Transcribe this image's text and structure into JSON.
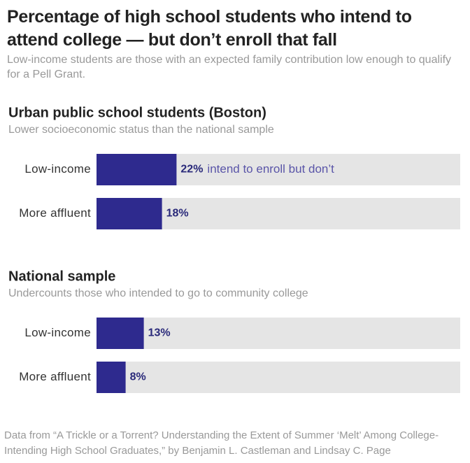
{
  "title": "Percentage of high school students who intend to attend college — but don’t enroll that fall",
  "subtitle": "Low-income students are those with an expected family contribution low enough to qualify for a Pell Grant.",
  "source": "Data from “A Trickle or a Torrent? Understanding the Extent of Summer ‘Melt’ Among College-Intending High School Graduates,” by Benjamin L. Castleman and Lindsay C. Page",
  "chart_data": [
    {
      "type": "bar",
      "orientation": "horizontal",
      "title": "Urban public school students (Boston)",
      "subtitle": "Lower socioeconomic status than the national sample",
      "categories": [
        "Low-income",
        "More affluent"
      ],
      "values": [
        22,
        18
      ],
      "value_labels": [
        "22%",
        "18%"
      ],
      "annotation": "intend to enroll but don’t",
      "xlim": [
        0,
        100
      ],
      "color": "#2e2a8e",
      "track_color": "#e5e5e5"
    },
    {
      "type": "bar",
      "orientation": "horizontal",
      "title": "National sample",
      "subtitle": "Undercounts those who intended to go to community college",
      "categories": [
        "Low-income",
        "More affluent"
      ],
      "values": [
        13,
        8
      ],
      "value_labels": [
        "13%",
        "8%"
      ],
      "xlim": [
        0,
        100
      ],
      "color": "#2e2a8e",
      "track_color": "#e5e5e5"
    }
  ]
}
